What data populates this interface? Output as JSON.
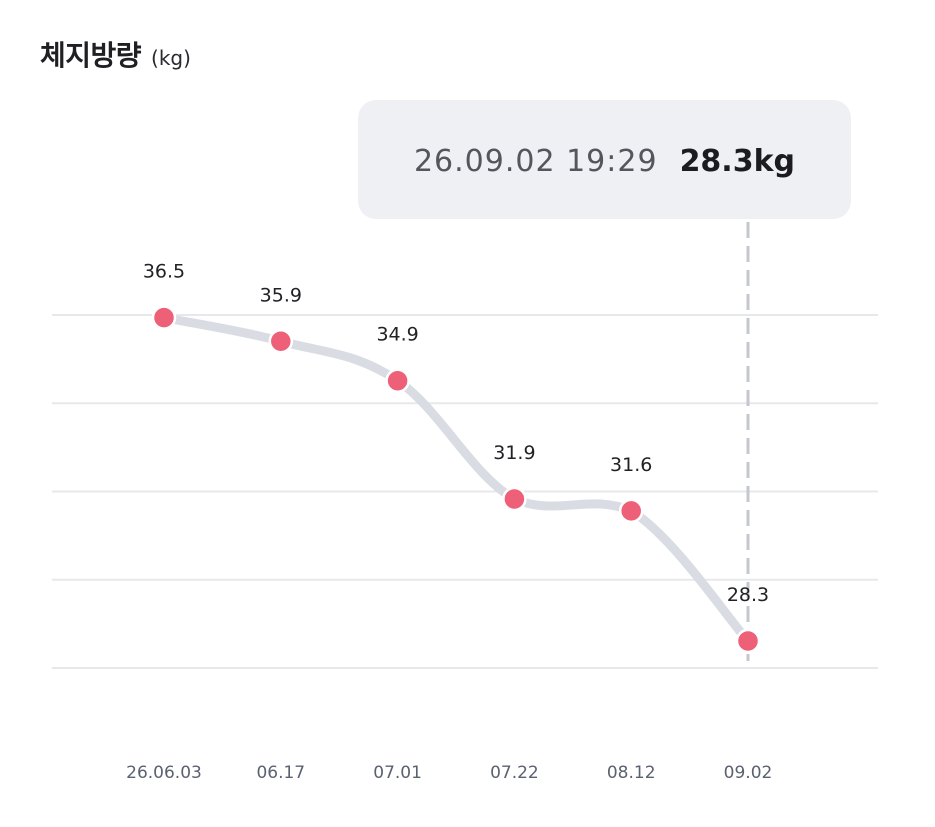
{
  "header": {
    "title": "체지방량",
    "unit": "(kg)"
  },
  "tooltip": {
    "datetime": "26.09.02 19:29",
    "value": "28.3kg"
  },
  "colors": {
    "line": "#d9dce2",
    "point": "#ee5f78",
    "grid": "#e7e8eb",
    "guide": "#c4c7ce",
    "tooltip_bg": "#eff0f3"
  },
  "chart_data": {
    "type": "line",
    "categories": [
      "26.06.03",
      "06.17",
      "07.01",
      "07.22",
      "08.12",
      "09.02"
    ],
    "series": [
      {
        "values": [
          36.5,
          35.9,
          34.9,
          31.9,
          31.6,
          28.3
        ],
        "labels": [
          "36.5",
          "35.9",
          "34.9",
          "31.9",
          "31.6",
          "28.3"
        ]
      }
    ],
    "ylim": [
      28.3,
      37.2
    ],
    "grid": true,
    "gridline_count": 5,
    "selected_index": 5
  }
}
